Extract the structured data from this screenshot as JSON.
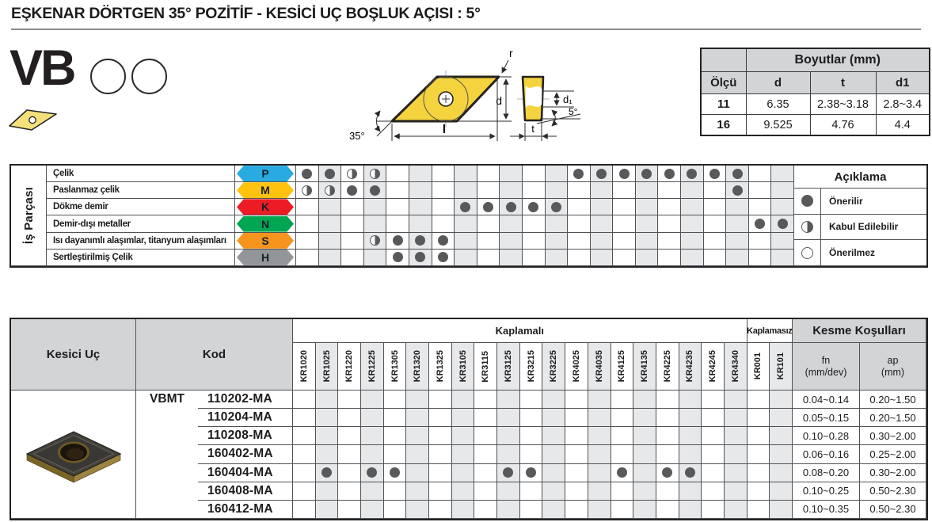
{
  "title": "EŞKENAR DÖRTGEN 35° POZİTİF - KESİCİ UÇ BOŞLUK AÇISI : 5°",
  "logo": {
    "text": "VB"
  },
  "drawing": {
    "corner_radius": "r",
    "d": "d",
    "d1": "d₁",
    "length": "l",
    "thickness": "t",
    "tip_angle": "35°",
    "clearance_angle": "5°"
  },
  "dimensions_table": {
    "title": "Boyutlar (mm)",
    "columns": [
      "Ölçü",
      "d",
      "t",
      "d1"
    ],
    "rows": [
      [
        "11",
        "6.35",
        "2.38~3.18",
        "2.8~3.4"
      ],
      [
        "16",
        "9.525",
        "4.76",
        "4.4"
      ]
    ]
  },
  "workpiece": {
    "side_label": "İş Parçası",
    "materials": [
      {
        "label": "Çelik",
        "letter": "P",
        "color": "#29abe2",
        "dots": [
          "f",
          "f",
          "h",
          "h",
          "",
          "",
          "",
          "",
          "",
          "",
          "",
          "",
          "f",
          "f",
          "f",
          "f",
          "f",
          "f",
          "f",
          "f",
          "",
          ""
        ]
      },
      {
        "label": "Paslanmaz çelik",
        "letter": "M",
        "color": "#ffc20e",
        "dots": [
          "h",
          "h",
          "f",
          "f",
          "",
          "",
          "",
          "",
          "",
          "",
          "",
          "",
          "",
          "",
          "",
          "",
          "",
          "",
          "",
          "f",
          "",
          ""
        ]
      },
      {
        "label": "Dökme demir",
        "letter": "K",
        "color": "#ed1c24",
        "dots": [
          "",
          "",
          "",
          "",
          "",
          "",
          "",
          "f",
          "f",
          "f",
          "f",
          "f",
          "",
          "",
          "",
          "",
          "",
          "",
          "",
          "",
          "",
          ""
        ]
      },
      {
        "label": "Demir-dışı metaller",
        "letter": "N",
        "color": "#00a651",
        "dots": [
          "",
          "",
          "",
          "",
          "",
          "",
          "",
          "",
          "",
          "",
          "",
          "",
          "",
          "",
          "",
          "",
          "",
          "",
          "",
          "",
          "f",
          "f"
        ]
      },
      {
        "label": "Isı dayanımlı alaşımlar, titanyum alaşımları",
        "letter": "S",
        "color": "#f7941e",
        "dots": [
          "",
          "",
          "",
          "h",
          "f",
          "f",
          "f",
          "",
          "",
          "",
          "",
          "",
          "",
          "",
          "",
          "",
          "",
          "",
          "",
          "",
          "",
          ""
        ]
      },
      {
        "label": "Sertleştirilmiş Çelik",
        "letter": "H",
        "color": "#939598",
        "dots": [
          "",
          "",
          "",
          "",
          "f",
          "f",
          "f",
          "",
          "",
          "",
          "",
          "",
          "",
          "",
          "",
          "",
          "",
          "",
          "",
          "",
          "",
          ""
        ]
      }
    ],
    "legend": {
      "title": "Açıklama",
      "items": [
        {
          "icon": "full-dot",
          "label": "Önerilir"
        },
        {
          "icon": "half-dot",
          "label": "Kabul Edilebilir"
        },
        {
          "icon": "empty-dot",
          "label": "Önerilmez"
        }
      ]
    }
  },
  "insert_table": {
    "kesici_uc_header": "Kesici Uç",
    "kod_header": "Kod",
    "coated_header": "Kaplamalı",
    "uncoated_header": "Kaplamasız",
    "cutting_header": "Kesme Koşulları",
    "fn_label": "fn",
    "fn_unit": "(mm/dev)",
    "ap_label": "ap",
    "ap_unit": "(mm)",
    "series": "VBMT",
    "grades": [
      "KR1020",
      "KR1025",
      "KR1220",
      "KR1225",
      "KR1305",
      "KR1320",
      "KR1325",
      "KR3105",
      "KR3115",
      "KR3125",
      "KR3215",
      "KR3225",
      "KR4025",
      "KR4035",
      "KR4125",
      "KR4135",
      "KR4225",
      "KR4235",
      "KR4245",
      "KR4340",
      "KR001",
      "KR101"
    ],
    "rows": [
      {
        "code": "110202-MA",
        "fn": "0.04~0.14",
        "ap": "0.20~1.50",
        "dots": [
          "",
          "",
          "",
          "",
          "",
          "",
          "",
          "",
          "",
          "",
          "",
          "",
          "",
          "",
          "",
          "",
          "",
          "",
          "",
          "",
          "",
          ""
        ]
      },
      {
        "code": "110204-MA",
        "fn": "0.05~0.15",
        "ap": "0.20~1.50",
        "dots": [
          "",
          "",
          "",
          "",
          "",
          "",
          "",
          "",
          "",
          "",
          "",
          "",
          "",
          "",
          "",
          "",
          "",
          "",
          "",
          "",
          "",
          ""
        ]
      },
      {
        "code": "110208-MA",
        "fn": "0.10~0.28",
        "ap": "0.30~2.00",
        "dots": [
          "",
          "",
          "",
          "",
          "",
          "",
          "",
          "",
          "",
          "",
          "",
          "",
          "",
          "",
          "",
          "",
          "",
          "",
          "",
          "",
          "",
          ""
        ]
      },
      {
        "code": "160402-MA",
        "fn": "0.06~0.16",
        "ap": "0.25~2.00",
        "dots": [
          "",
          "",
          "",
          "",
          "",
          "",
          "",
          "",
          "",
          "",
          "",
          "",
          "",
          "",
          "",
          "",
          "",
          "",
          "",
          "",
          "",
          ""
        ]
      },
      {
        "code": "160404-MA",
        "fn": "0.08~0.20",
        "ap": "0.30~2.00",
        "dots": [
          "",
          "f",
          "",
          "f",
          "f",
          "",
          "",
          "",
          "",
          "f",
          "f",
          "",
          "",
          "",
          "f",
          "",
          "f",
          "f",
          "",
          "",
          "",
          ""
        ]
      },
      {
        "code": "160408-MA",
        "fn": "0.10~0.25",
        "ap": "0.50~2.30",
        "dots": [
          "",
          "",
          "",
          "",
          "",
          "",
          "",
          "",
          "",
          "",
          "",
          "",
          "",
          "",
          "",
          "",
          "",
          "",
          "",
          "",
          "",
          ""
        ]
      },
      {
        "code": "160412-MA",
        "fn": "0.10~0.35",
        "ap": "0.50~2.30",
        "dots": [
          "",
          "",
          "",
          "",
          "",
          "",
          "",
          "",
          "",
          "",
          "",
          "",
          "",
          "",
          "",
          "",
          "",
          "",
          "",
          "",
          "",
          ""
        ]
      }
    ]
  }
}
